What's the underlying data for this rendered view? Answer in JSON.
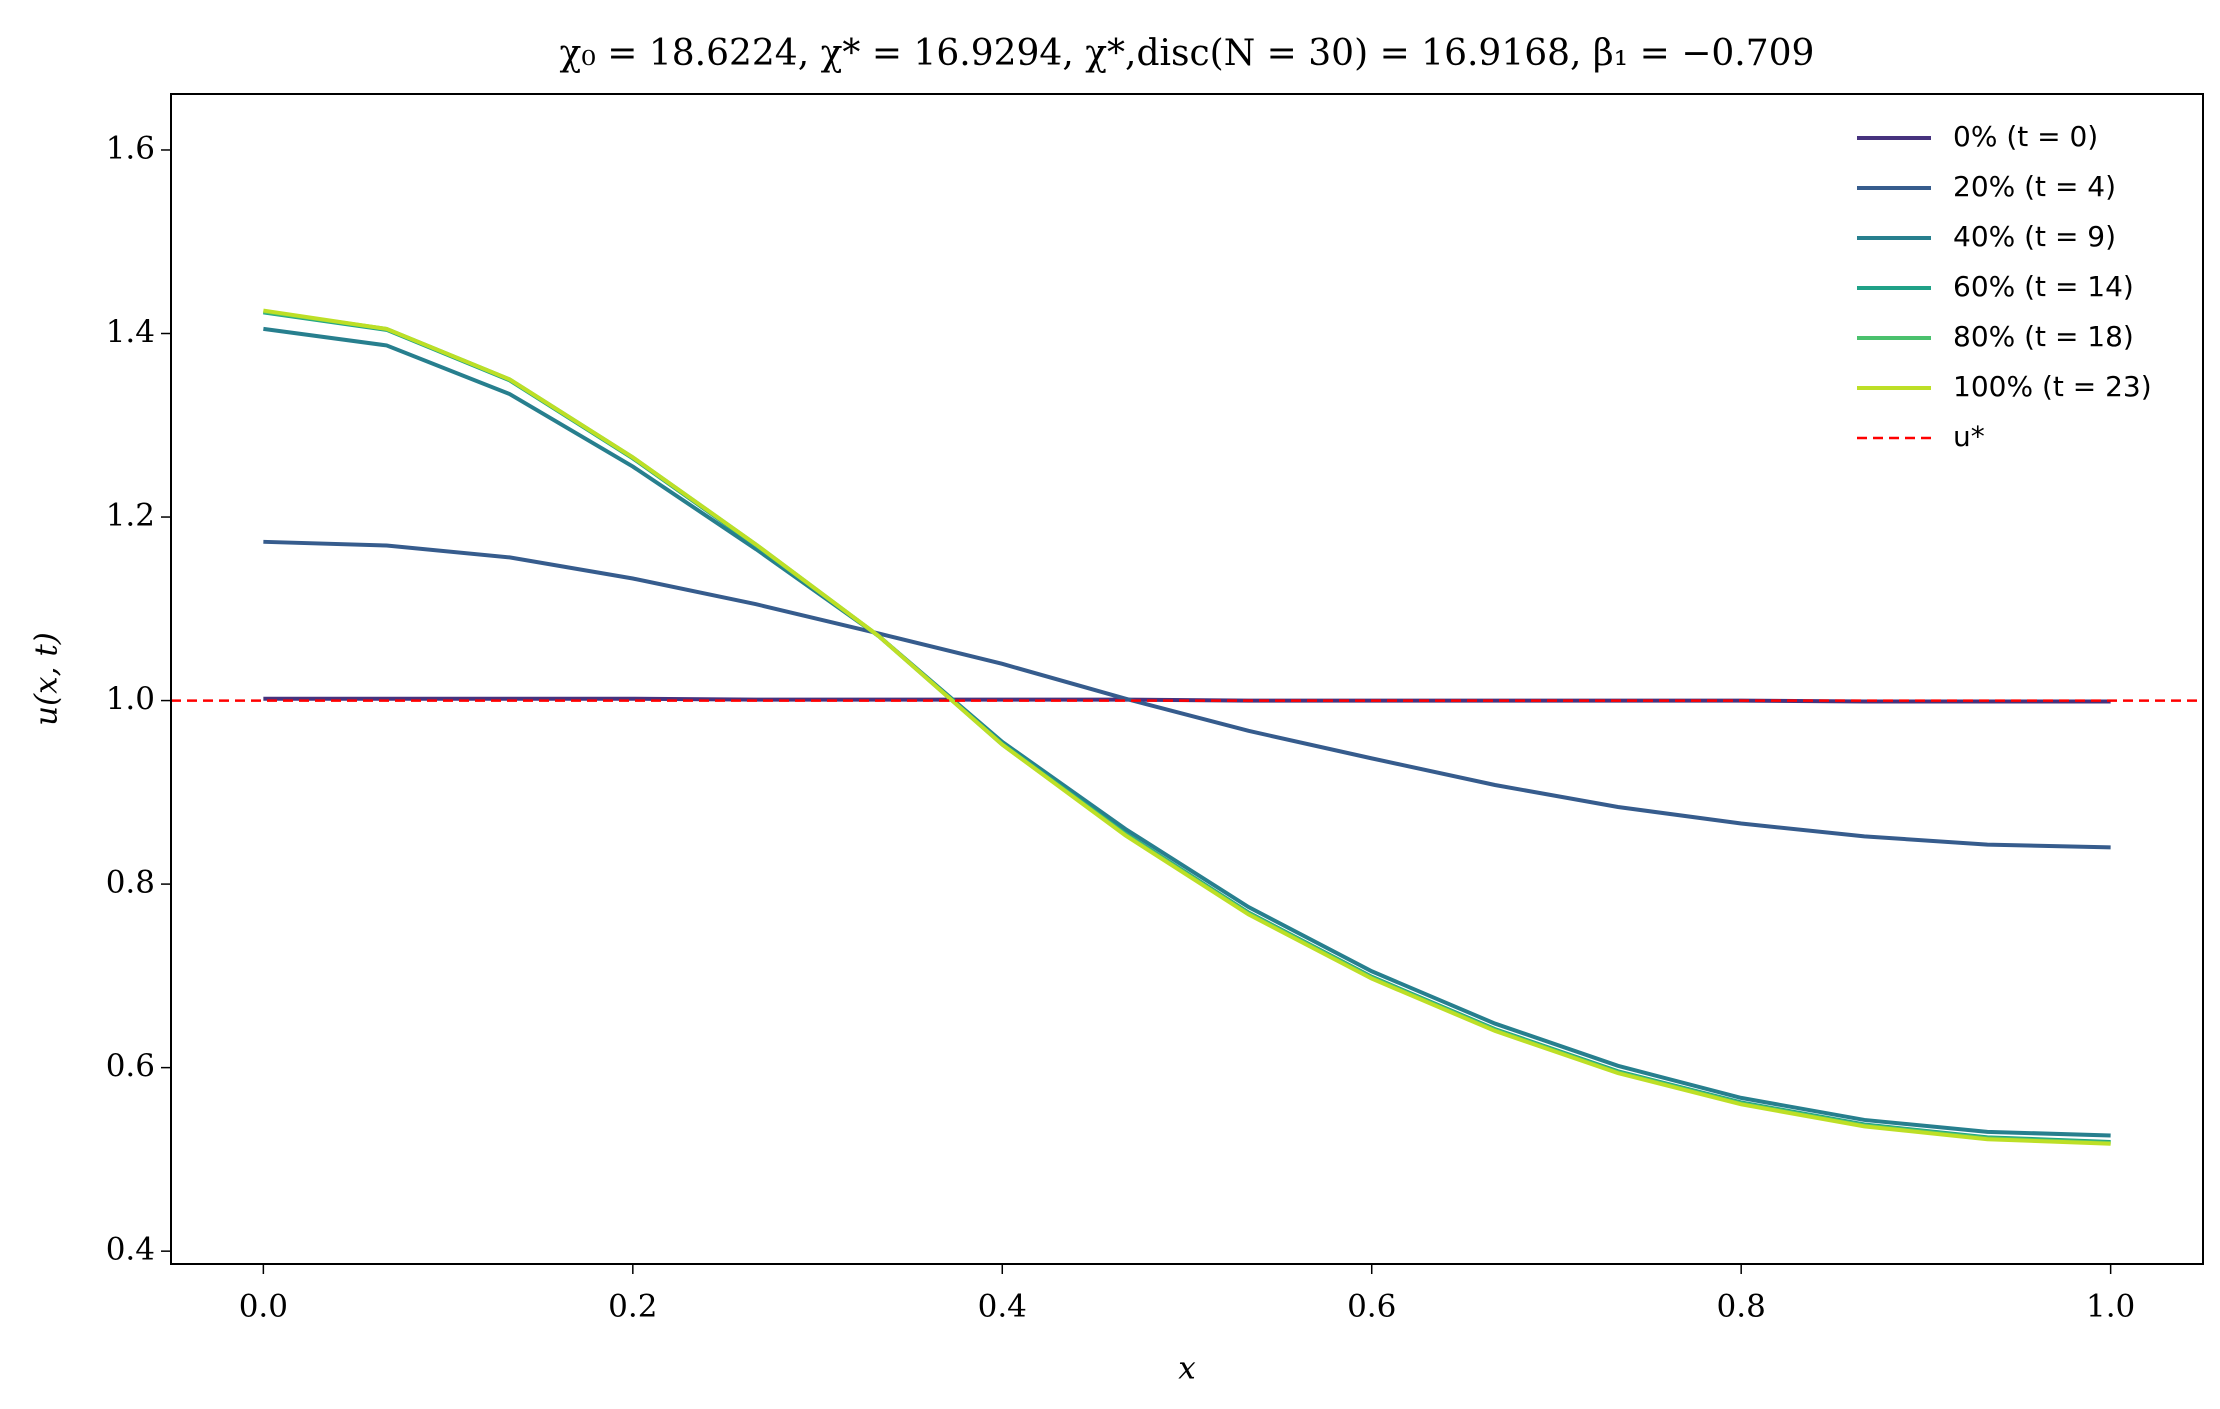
{
  "chart_data": {
    "type": "line",
    "title": "χ₀ = 18.6224,  χ* = 16.9294,  χ*,disc(N = 30) = 16.9168,  β₁ = −0.709",
    "xlabel": "x",
    "ylabel": "u(x, t)",
    "x": [
      0,
      0.0667,
      0.1333,
      0.2,
      0.2667,
      0.3333,
      0.4,
      0.4667,
      0.5333,
      0.6,
      0.6667,
      0.7333,
      0.8,
      0.8667,
      0.9333,
      1
    ],
    "series": [
      {
        "name": "0% (t = 0)",
        "color": "#46327e",
        "values": [
          1.002,
          1.002,
          1.002,
          1.002,
          1.001,
          1.001,
          1.001,
          1.001,
          1.0,
          1.0,
          1.0,
          1.0,
          1.0,
          0.999,
          0.999,
          0.999
        ]
      },
      {
        "name": "20% (t = 4)",
        "color": "#365c8d",
        "values": [
          1.173,
          1.169,
          1.156,
          1.133,
          1.105,
          1.073,
          1.04,
          1.002,
          0.967,
          0.937,
          0.908,
          0.884,
          0.866,
          0.852,
          0.843,
          0.84
        ]
      },
      {
        "name": "40% (t = 9)",
        "color": "#277f8e",
        "values": [
          1.405,
          1.387,
          1.334,
          1.255,
          1.165,
          1.07,
          0.955,
          0.86,
          0.775,
          0.705,
          0.648,
          0.602,
          0.567,
          0.543,
          0.53,
          0.526
        ]
      },
      {
        "name": "60% (t = 14)",
        "color": "#1fa187",
        "values": [
          1.423,
          1.404,
          1.349,
          1.264,
          1.169,
          1.07,
          0.953,
          0.855,
          0.769,
          0.699,
          0.642,
          0.596,
          0.562,
          0.538,
          0.524,
          0.519
        ]
      },
      {
        "name": "80% (t = 18)",
        "color": "#4ac16d",
        "values": [
          1.424,
          1.405,
          1.35,
          1.265,
          1.17,
          1.07,
          0.952,
          0.854,
          0.768,
          0.698,
          0.641,
          0.595,
          0.561,
          0.537,
          0.523,
          0.518
        ]
      },
      {
        "name": "100% (t = 23)",
        "color": "#bddf26",
        "values": [
          1.425,
          1.405,
          1.35,
          1.265,
          1.17,
          1.07,
          0.952,
          0.853,
          0.767,
          0.697,
          0.64,
          0.594,
          0.56,
          0.536,
          0.522,
          0.517
        ]
      }
    ],
    "hlines": [
      {
        "name": "u*",
        "value": 1,
        "color": "#ff0000",
        "dashed": true
      }
    ],
    "xlim": [
      -0.05,
      1.05
    ],
    "ylim": [
      0.386,
      1.661
    ],
    "xticks": [
      {
        "value": 0,
        "label": "0.0"
      },
      0.2,
      0.4,
      0.6,
      0.8,
      {
        "value": 1,
        "label": "1.0"
      }
    ],
    "yticks": [
      0.4,
      0.6,
      0.8,
      {
        "value": 1,
        "label": "1.0"
      },
      1.2,
      1.4,
      1.6
    ],
    "grid": false,
    "legend": "upper right"
  }
}
